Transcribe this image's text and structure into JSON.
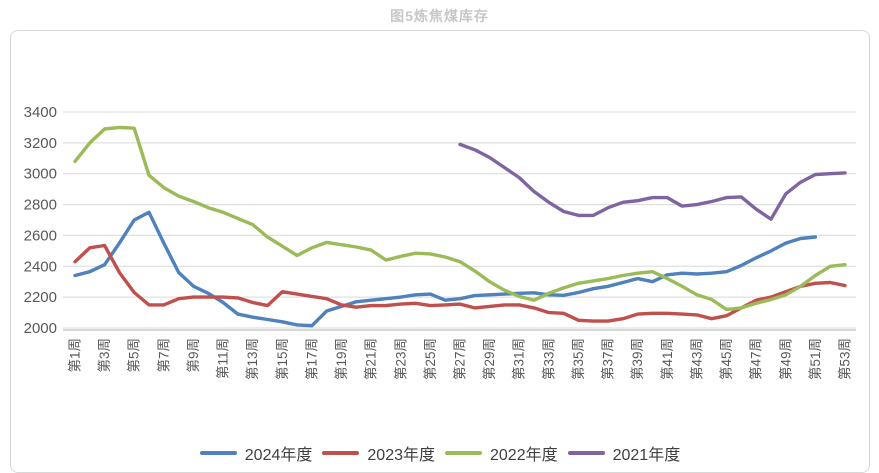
{
  "chart_data": {
    "type": "line",
    "title": "图5炼焦煤库存",
    "categories": [
      "第1周",
      "第2周",
      "第3周",
      "第4周",
      "第5周",
      "第6周",
      "第7周",
      "第8周",
      "第9周",
      "第10周",
      "第11周",
      "第12周",
      "第13周",
      "第14周",
      "第15周",
      "第16周",
      "第17周",
      "第18周",
      "第19周",
      "第20周",
      "第21周",
      "第22周",
      "第23周",
      "第24周",
      "第25周",
      "第26周",
      "第27周",
      "第28周",
      "第29周",
      "第30周",
      "第31周",
      "第32周",
      "第33周",
      "第34周",
      "第35周",
      "第36周",
      "第37周",
      "第38周",
      "第39周",
      "第40周",
      "第41周",
      "第42周",
      "第43周",
      "第44周",
      "第45周",
      "第46周",
      "第47周",
      "第48周",
      "第49周",
      "第50周",
      "第51周",
      "第52周",
      "第53周"
    ],
    "x_tick_step": 2,
    "ylim": [
      2000,
      3400
    ],
    "y_tick_interval": 200,
    "y_ticks": [
      3400,
      3200,
      3000,
      2800,
      2600,
      2400,
      2200,
      2000
    ],
    "grid": true,
    "legend_position": "bottom",
    "series": [
      {
        "name": "2024年度",
        "color": "#4F81BD",
        "values": [
          2340,
          2365,
          2410,
          2550,
          2700,
          2750,
          2550,
          2360,
          2270,
          2225,
          2165,
          2090,
          2070,
          2055,
          2040,
          2020,
          2015,
          2110,
          2140,
          2170,
          2180,
          2190,
          2200,
          2215,
          2220,
          2180,
          2190,
          2210,
          2215,
          2220,
          2225,
          2228,
          2215,
          2212,
          2230,
          2255,
          2270,
          2295,
          2320,
          2300,
          2345,
          2355,
          2350,
          2355,
          2365,
          2405,
          2455,
          2500,
          2550,
          2580,
          2590,
          null,
          null
        ]
      },
      {
        "name": "2023年度",
        "color": "#C0504D",
        "values": [
          2430,
          2520,
          2535,
          2360,
          2230,
          2150,
          2150,
          2190,
          2200,
          2200,
          2200,
          2195,
          2165,
          2145,
          2235,
          2220,
          2205,
          2190,
          2150,
          2135,
          2145,
          2145,
          2155,
          2160,
          2145,
          2150,
          2155,
          2130,
          2140,
          2150,
          2150,
          2130,
          2100,
          2095,
          2050,
          2045,
          2045,
          2060,
          2090,
          2095,
          2095,
          2090,
          2085,
          2060,
          2080,
          2130,
          2180,
          2200,
          2235,
          2270,
          2290,
          2295,
          2275
        ]
      },
      {
        "name": "2022年度",
        "color": "#9BBB59",
        "values": [
          3080,
          3200,
          3290,
          3300,
          3295,
          2990,
          2910,
          2855,
          2820,
          2780,
          2750,
          2710,
          2670,
          2590,
          2530,
          2470,
          2520,
          2555,
          2540,
          2525,
          2505,
          2440,
          2465,
          2485,
          2480,
          2460,
          2430,
          2370,
          2300,
          2245,
          2205,
          2180,
          2225,
          2260,
          2290,
          2305,
          2320,
          2340,
          2355,
          2365,
          2320,
          2270,
          2215,
          2185,
          2120,
          2130,
          2160,
          2185,
          2215,
          2270,
          2340,
          2400,
          2410
        ]
      },
      {
        "name": "2021年度",
        "color": "#8064A2",
        "values": [
          null,
          null,
          null,
          null,
          null,
          null,
          null,
          null,
          null,
          null,
          null,
          null,
          null,
          null,
          null,
          null,
          null,
          null,
          null,
          null,
          null,
          null,
          null,
          null,
          null,
          null,
          3190,
          3155,
          3105,
          3040,
          2975,
          2885,
          2815,
          2755,
          2730,
          2730,
          2780,
          2815,
          2825,
          2845,
          2845,
          2790,
          2800,
          2820,
          2845,
          2850,
          2770,
          2705,
          2870,
          2945,
          2995,
          3000,
          3005
        ]
      }
    ]
  },
  "colors": {
    "title_text": "#C9C7C7",
    "axis_text": "#595959",
    "gridline": "#D9D9D9",
    "axis_line": "#BFBFBF",
    "box_border": "#D8D8D8",
    "background": "#FFFFFF"
  }
}
